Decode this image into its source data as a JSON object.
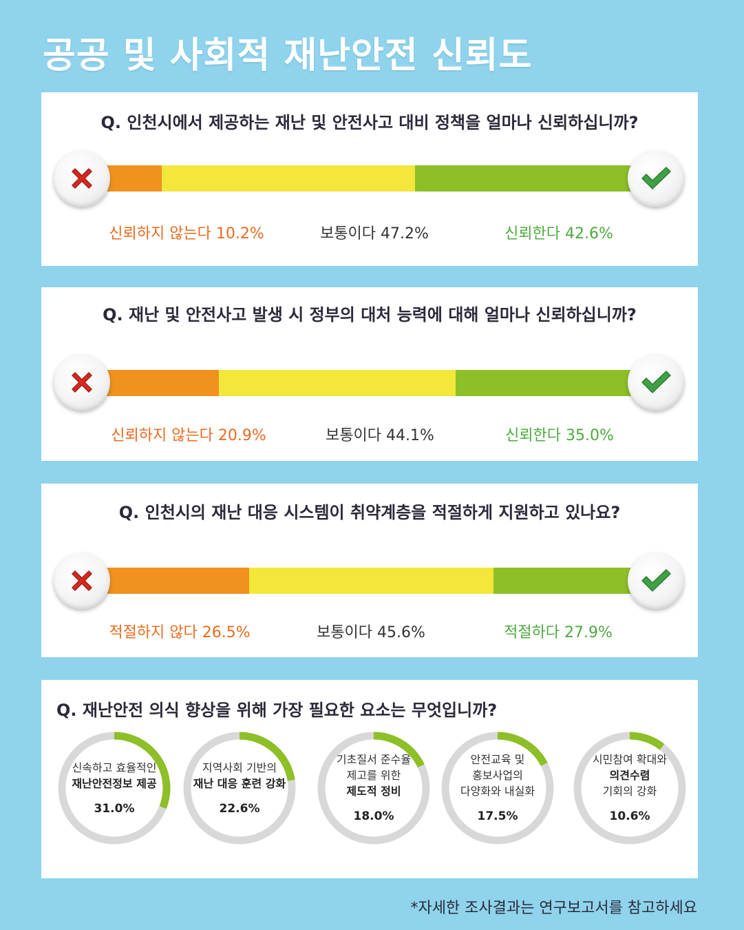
{
  "title": "공공 및 사회적 재난안전 신뢰도",
  "colors": {
    "negative": "#f1911e",
    "neutral": "#f2e73a",
    "positive": "#8dbf26",
    "ring_track": "#d8d8d8",
    "ring_fill": "#8dbf26"
  },
  "questions": [
    {
      "text": "Q. 인천시에서 제공하는 재난 및 안전사고 대비 정책을 얼마나 신뢰하십니까?",
      "labels": [
        "신뢰하지 않는다 10.2%",
        "보통이다 47.2%",
        "신뢰한다 42.6%"
      ]
    },
    {
      "text": "Q. 재난 및 안전사고 발생 시 정부의 대처 능력에 대해 얼마나 신뢰하십니까?",
      "labels": [
        "신뢰하지 않는다 20.9%",
        "보통이다 44.1%",
        "신뢰한다 35.0%"
      ]
    },
    {
      "text": "Q. 인천시의 재난 대응 시스템이 취약계층을 적절하게 지원하고 있나요?",
      "labels": [
        "적절하지 않다 26.5%",
        "보통이다 45.6%",
        "적절하다 27.9%"
      ]
    }
  ],
  "q4": {
    "text": "Q. 재난안전 의식 향상을 위해 가장 필요한 요소는 무엇입니까?",
    "items": [
      {
        "lines": [
          {
            "t": "신속하고 효율적인",
            "b": false
          },
          {
            "t": "재난안전정보 제공",
            "b": true
          }
        ],
        "pct_label": "31.0%"
      },
      {
        "lines": [
          {
            "t": "지역사회 기반의",
            "b": false
          },
          {
            "t": "재난 대응 훈련 강화",
            "b": true
          }
        ],
        "pct_label": "22.6%"
      },
      {
        "lines": [
          {
            "t": "기초질서 준수율",
            "b": false
          },
          {
            "t": "제고를 위한",
            "b": false
          },
          {
            "t": "제도적 정비",
            "b": true
          }
        ],
        "pct_label": "18.0%"
      },
      {
        "lines": [
          {
            "t": "안전교육 및",
            "b": false
          },
          {
            "t": "홍보사업의",
            "b": false
          },
          {
            "t": "다양화와 내실화",
            "b": false
          }
        ],
        "pct_label": "17.5%"
      },
      {
        "lines": [
          {
            "t": "시민참여 확대와",
            "b": false
          },
          {
            "t": "의견수렴",
            "b": true
          },
          {
            "t": "기회의 강화",
            "b": false
          }
        ],
        "pct_label": "10.6%"
      }
    ]
  },
  "chart_data": [
    {
      "type": "bar",
      "title": "Q. 인천시에서 제공하는 재난 및 안전사고 대비 정책을 얼마나 신뢰하십니까?",
      "categories": [
        "신뢰하지 않는다",
        "보통이다",
        "신뢰한다"
      ],
      "values": [
        10.2,
        47.2,
        42.6
      ],
      "stacked": true
    },
    {
      "type": "bar",
      "title": "Q. 재난 및 안전사고 발생 시 정부의 대처 능력에 대해 얼마나 신뢰하십니까?",
      "categories": [
        "신뢰하지 않는다",
        "보통이다",
        "신뢰한다"
      ],
      "values": [
        20.9,
        44.1,
        35.0
      ],
      "stacked": true
    },
    {
      "type": "bar",
      "title": "Q. 인천시의 재난 대응 시스템이 취약계층을 적절하게 지원하고 있나요?",
      "categories": [
        "적절하지 않다",
        "보통이다",
        "적절하다"
      ],
      "values": [
        26.5,
        45.6,
        27.9
      ],
      "stacked": true
    },
    {
      "type": "pie",
      "title": "Q. 재난안전 의식 향상을 위해 가장 필요한 요소는 무엇입니까?",
      "categories": [
        "신속하고 효율적인 재난안전정보 제공",
        "지역사회 기반의 재난 대응 훈련 강화",
        "기초질서 준수율 제고를 위한 제도적 정비",
        "안전교육 및 홍보사업의 다양화와 내실화",
        "시민참여 확대와 의견수렴 기회의 강화"
      ],
      "values": [
        31.0,
        22.6,
        18.0,
        17.5,
        10.6
      ]
    }
  ],
  "footnote": "*자세한 조사결과는 연구보고서를 참고하세요"
}
